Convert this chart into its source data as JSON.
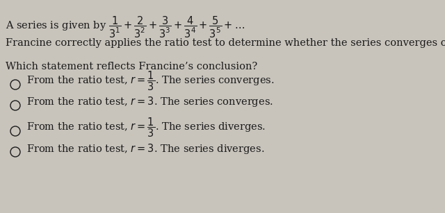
{
  "background_color": "#c8c4bc",
  "text_color": "#1a1a1a",
  "title_line1": "A series is given by $\\dfrac{1}{3^1} + \\dfrac{2}{3^2} + \\dfrac{3}{3^3} + \\dfrac{4}{3^4} + \\dfrac{5}{3^5} + \\ldots$",
  "line2": "Francine correctly applies the ratio test to determine whether the series converges or diverges.",
  "line3": "Which statement reflects Francine’s conclusion?",
  "option1": "From the ratio test, $r = \\dfrac{1}{3}$. The series converges.",
  "option2": "From the ratio test, $r = 3$. The series converges.",
  "option3": "From the ratio test, $r = \\dfrac{1}{3}$. The series diverges.",
  "option4": "From the ratio test, $r = 3$. The series diverges.",
  "font_size": 10.5,
  "font_size_title": 10.5
}
